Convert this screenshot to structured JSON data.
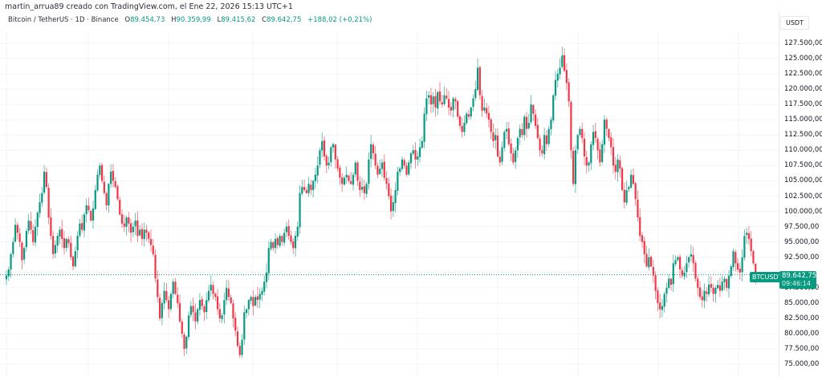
{
  "header": {
    "credit": "martin_arrua89 creado con TradingView.com, el Ene 22, 2026 15:13 UTC+1",
    "symbol_line": "Bitcoin / TetherUS · 1D · Binance",
    "open_label": "O",
    "open": "89.454,73",
    "high_label": "H",
    "high": "90.359,99",
    "low_label": "L",
    "low": "89.415,62",
    "close_label": "C",
    "close": "89.642,75",
    "change": "+188,02 (+0,21%)"
  },
  "axis": {
    "currency": "USDT",
    "ticks": [
      "127.500,00",
      "125.000,00",
      "122.500,00",
      "120.000,00",
      "117.500,00",
      "115.000,00",
      "112.500,00",
      "110.000,00",
      "107.500,00",
      "105.000,00",
      "102.500,00",
      "100.000,00",
      "97.500,00",
      "95.000,00",
      "92.500,00",
      "87.500,00",
      "85.000,00",
      "82.500,00",
      "80.000,00",
      "77.500,00",
      "75.000,00"
    ]
  },
  "last_price": {
    "symbol": "BTCUSDT",
    "price": "89.642,75",
    "countdown": "09:46:14"
  },
  "colors": {
    "up": "#089981",
    "down": "#f23645",
    "grid": "#f0f3fa",
    "last_line": "#089981"
  },
  "chart_data": {
    "type": "candlestick",
    "title": "Bitcoin / TetherUS · 1D · Binance",
    "xlabel": "",
    "ylabel": "USDT",
    "ylim": [
      74500,
      128500
    ],
    "grid": true,
    "last_price": 89642.75,
    "closes": [
      89500,
      90500,
      93000,
      95000,
      97800,
      96500,
      95000,
      92000,
      94000,
      96800,
      98500,
      97000,
      95000,
      97500,
      99800,
      101500,
      103000,
      106500,
      104000,
      99000,
      96000,
      93000,
      94500,
      96000,
      97000,
      95500,
      94000,
      95500,
      94800,
      92500,
      91000,
      93500,
      96000,
      98000,
      97000,
      99500,
      101000,
      100200,
      98500,
      100500,
      103500,
      106000,
      107500,
      105000,
      103000,
      101000,
      104500,
      106500,
      105000,
      104000,
      102000,
      99500,
      98000,
      97500,
      99000,
      98000,
      96500,
      97500,
      98500,
      96000,
      97000,
      95500,
      97000,
      96500,
      95500,
      94500,
      93000,
      89000,
      86000,
      82500,
      85000,
      87000,
      85500,
      84000,
      86500,
      88500,
      86500,
      85000,
      82000,
      80000,
      77500,
      79500,
      83000,
      84500,
      83500,
      82000,
      84000,
      85500,
      84500,
      83500,
      85500,
      87000,
      88000,
      86500,
      86000,
      84000,
      82500,
      83000,
      85500,
      87500,
      86000,
      85000,
      82500,
      80500,
      78000,
      76500,
      79000,
      83500,
      84000,
      85500,
      86000,
      84500,
      86000,
      85500,
      86500,
      87000,
      88500,
      90000,
      94000,
      95000,
      94000,
      95500,
      94500,
      96000,
      95000,
      96500,
      97500,
      96000,
      95000,
      94000,
      96000,
      97500,
      103000,
      104000,
      103500,
      103000,
      104500,
      103500,
      105000,
      106000,
      107500,
      110000,
      111500,
      109000,
      107500,
      108000,
      110500,
      111000,
      108500,
      107000,
      105500,
      104500,
      105500,
      106000,
      105000,
      104500,
      106000,
      108000,
      105000,
      103500,
      104000,
      103000,
      104500,
      108500,
      111000,
      109500,
      107500,
      106000,
      107000,
      108000,
      105500,
      104500,
      102500,
      100000,
      101500,
      103500,
      106500,
      107000,
      108500,
      107500,
      106000,
      108000,
      109500,
      110000,
      108500,
      109000,
      110500,
      111500,
      116000,
      118500,
      119000,
      117500,
      118800,
      117000,
      119500,
      118000,
      117500,
      119000,
      118500,
      117000,
      116500,
      118500,
      118000,
      115500,
      114000,
      113000,
      114500,
      116000,
      115500,
      117000,
      118500,
      120000,
      123500,
      119000,
      116500,
      117000,
      116000,
      115000,
      113000,
      111500,
      112500,
      109000,
      108000,
      110500,
      113000,
      113500,
      111000,
      109500,
      108000,
      110000,
      112000,
      113500,
      112500,
      115500,
      113500,
      114500,
      117500,
      116000,
      114000,
      112000,
      110000,
      109500,
      112500,
      111000,
      113500,
      115000,
      119000,
      121500,
      122500,
      123500,
      125500,
      123000,
      121000,
      118000,
      110000,
      104500,
      110000,
      112500,
      113500,
      112000,
      109000,
      107500,
      108000,
      111000,
      113000,
      112000,
      110000,
      108000,
      111000,
      115000,
      113500,
      112000,
      110500,
      107500,
      106500,
      108500,
      107000,
      103500,
      101500,
      103500,
      104000,
      106000,
      104500,
      102000,
      99000,
      96000,
      95000,
      93000,
      91000,
      92500,
      91000,
      89500,
      87000,
      85000,
      84000,
      84500,
      86500,
      87500,
      89000,
      88000,
      91500,
      92000,
      92500,
      90500,
      89500,
      90000,
      91500,
      92500,
      93000,
      91500,
      89000,
      87500,
      86000,
      85500,
      87000,
      86500,
      88000,
      87500,
      86500,
      87500,
      88000,
      87000,
      88500,
      89000,
      87500,
      89500,
      91000,
      93500,
      91500,
      90500,
      90000,
      92500,
      96000,
      96500,
      95500,
      93500,
      91500,
      89454,
      89642
    ]
  }
}
